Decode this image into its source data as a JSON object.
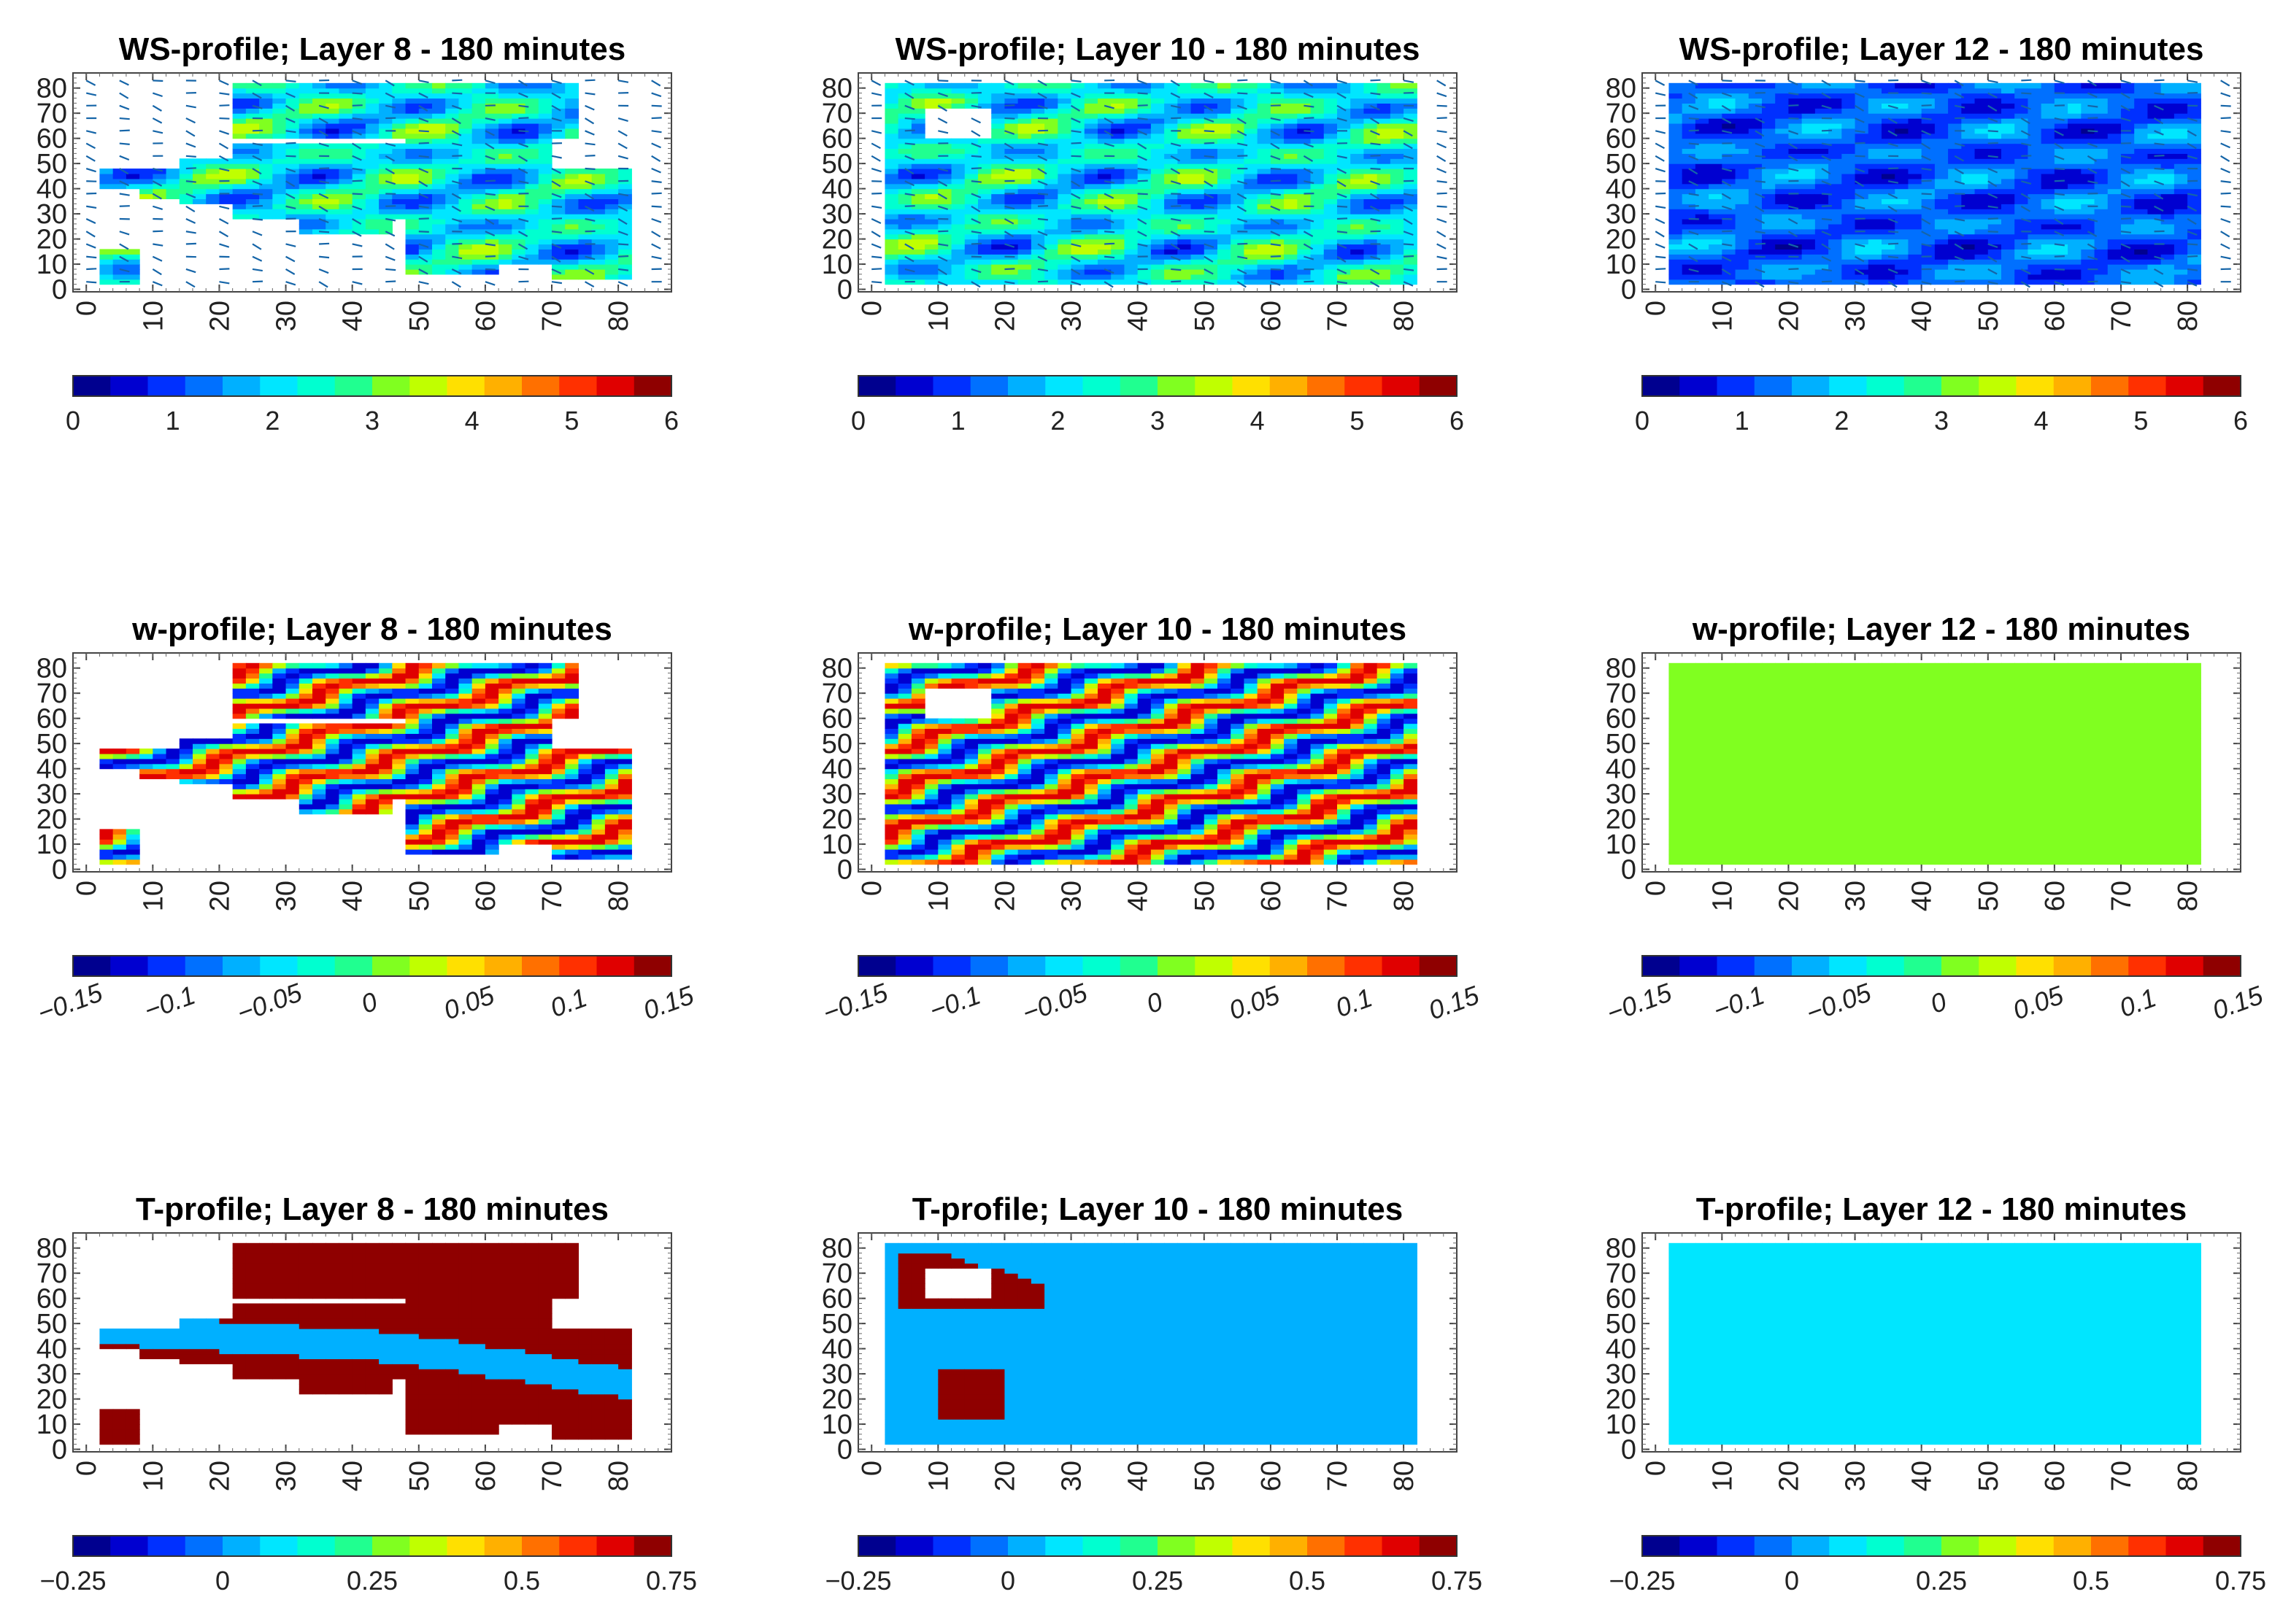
{
  "figure": {
    "description_rows": [
      "WS-profile",
      "w-profile",
      "T-profile"
    ],
    "layers": [
      "Layer 8",
      "Layer 10",
      "Layer 12"
    ]
  },
  "colormap": [
    "#00008f",
    "#0000d0",
    "#0030ff",
    "#0070ff",
    "#00b0ff",
    "#00e6ff",
    "#00ffd0",
    "#20ff90",
    "#80ff20",
    "#c0ff00",
    "#ffe000",
    "#ffb000",
    "#ff7000",
    "#ff3000",
    "#e00000",
    "#8f0000"
  ],
  "chart_data": [
    {
      "type": "heatmap",
      "id": "ws8",
      "title": "WS-profile; Layer 8 - 180 minutes",
      "x_ticks": [
        "0",
        "10",
        "20",
        "30",
        "40",
        "50",
        "60",
        "70",
        "80"
      ],
      "y_ticks": [
        "0",
        "10",
        "20",
        "30",
        "40",
        "50",
        "60",
        "70",
        "80"
      ],
      "xlim": [
        -2,
        88
      ],
      "ylim": [
        -1,
        86
      ],
      "colorbar": {
        "range": [
          0,
          6
        ],
        "ticks": [
          "0",
          "1",
          "2",
          "3",
          "4",
          "5",
          "6"
        ],
        "rotated": false
      },
      "vectors": true,
      "domain_mask": "partial",
      "field": "ws",
      "mask": [
        [
          22,
          75,
          60,
          83
        ],
        [
          2,
          8,
          41,
          49
        ],
        [
          8,
          16,
          36,
          49
        ],
        [
          14,
          22,
          35,
          52
        ],
        [
          22,
          48,
          28,
          58
        ],
        [
          32,
          46,
          22,
          36
        ],
        [
          48,
          62,
          6,
          78
        ],
        [
          62,
          70,
          10,
          60
        ],
        [
          70,
          82,
          5,
          48
        ],
        [
          2,
          8,
          2,
          17
        ]
      ]
    },
    {
      "type": "heatmap",
      "id": "ws10",
      "title": "WS-profile; Layer 10 - 180 minutes",
      "x_ticks": [
        "0",
        "10",
        "20",
        "30",
        "40",
        "50",
        "60",
        "70",
        "80"
      ],
      "y_ticks": [
        "0",
        "10",
        "20",
        "30",
        "40",
        "50",
        "60",
        "70",
        "80"
      ],
      "xlim": [
        -2,
        88
      ],
      "ylim": [
        -1,
        86
      ],
      "colorbar": {
        "range": [
          0,
          6
        ],
        "ticks": [
          "0",
          "1",
          "2",
          "3",
          "4",
          "5",
          "6"
        ],
        "rotated": false
      },
      "vectors": true,
      "domain_mask": "full-with-hole",
      "field": "ws",
      "mask": [
        [
          2,
          82,
          3,
          83
        ]
      ],
      "hole": [
        7,
        17,
        59,
        71
      ]
    },
    {
      "type": "heatmap",
      "id": "ws12",
      "title": "WS-profile; Layer 12 - 180 minutes",
      "x_ticks": [
        "0",
        "10",
        "20",
        "30",
        "40",
        "50",
        "60",
        "70",
        "80"
      ],
      "y_ticks": [
        "0",
        "10",
        "20",
        "30",
        "40",
        "50",
        "60",
        "70",
        "80"
      ],
      "xlim": [
        -2,
        88
      ],
      "ylim": [
        -1,
        86
      ],
      "colorbar": {
        "range": [
          0,
          6
        ],
        "ticks": [
          "0",
          "1",
          "2",
          "3",
          "4",
          "5",
          "6"
        ],
        "rotated": false
      },
      "vectors": true,
      "domain_mask": "full",
      "field": "ws_low",
      "mask": [
        [
          2,
          82,
          3,
          83
        ]
      ]
    },
    {
      "type": "heatmap",
      "id": "w8",
      "title": "w-profile; Layer 8 - 180 minutes",
      "x_ticks": [
        "0",
        "10",
        "20",
        "30",
        "40",
        "50",
        "60",
        "70",
        "80"
      ],
      "y_ticks": [
        "0",
        "10",
        "20",
        "30",
        "40",
        "50",
        "60",
        "70",
        "80"
      ],
      "xlim": [
        -2,
        88
      ],
      "ylim": [
        -1,
        86
      ],
      "colorbar": {
        "range": [
          -0.15,
          0.15
        ],
        "ticks": [
          "−0.15",
          "−0.1",
          "−0.05",
          "0",
          "0.05",
          "0.1",
          "0.15"
        ],
        "rotated": true
      },
      "vectors": false,
      "domain_mask": "partial",
      "field": "w",
      "mask": [
        [
          22,
          75,
          60,
          83
        ],
        [
          2,
          8,
          41,
          49
        ],
        [
          8,
          16,
          36,
          49
        ],
        [
          14,
          22,
          35,
          52
        ],
        [
          22,
          48,
          28,
          58
        ],
        [
          32,
          46,
          22,
          36
        ],
        [
          48,
          62,
          6,
          78
        ],
        [
          62,
          70,
          10,
          60
        ],
        [
          70,
          82,
          5,
          48
        ],
        [
          2,
          8,
          2,
          17
        ]
      ]
    },
    {
      "type": "heatmap",
      "id": "w10",
      "title": "w-profile; Layer 10 - 180 minutes",
      "x_ticks": [
        "0",
        "10",
        "20",
        "30",
        "40",
        "50",
        "60",
        "70",
        "80"
      ],
      "y_ticks": [
        "0",
        "10",
        "20",
        "30",
        "40",
        "50",
        "60",
        "70",
        "80"
      ],
      "xlim": [
        -2,
        88
      ],
      "ylim": [
        -1,
        86
      ],
      "colorbar": {
        "range": [
          -0.15,
          0.15
        ],
        "ticks": [
          "−0.15",
          "−0.1",
          "−0.05",
          "0",
          "0.05",
          "0.1",
          "0.15"
        ],
        "rotated": true
      },
      "vectors": false,
      "domain_mask": "full-with-hole",
      "field": "w",
      "mask": [
        [
          2,
          82,
          3,
          83
        ]
      ],
      "hole": [
        7,
        17,
        59,
        71
      ]
    },
    {
      "type": "heatmap",
      "id": "w12",
      "title": "w-profile; Layer 12 - 180 minutes",
      "x_ticks": [
        "0",
        "10",
        "20",
        "30",
        "40",
        "50",
        "60",
        "70",
        "80"
      ],
      "y_ticks": [
        "0",
        "10",
        "20",
        "30",
        "40",
        "50",
        "60",
        "70",
        "80"
      ],
      "xlim": [
        -2,
        88
      ],
      "ylim": [
        -1,
        86
      ],
      "colorbar": {
        "range": [
          -0.15,
          0.15
        ],
        "ticks": [
          "−0.15",
          "−0.1",
          "−0.05",
          "0",
          "0.05",
          "0.1",
          "0.15"
        ],
        "rotated": true
      },
      "vectors": false,
      "domain_mask": "full",
      "field": "uniform",
      "uniform_value": 0.015,
      "mask": [
        [
          2,
          82,
          3,
          83
        ]
      ]
    },
    {
      "type": "heatmap",
      "id": "t8",
      "title": "T-profile; Layer 8 - 180 minutes",
      "x_ticks": [
        "0",
        "10",
        "20",
        "30",
        "40",
        "50",
        "60",
        "70",
        "80"
      ],
      "y_ticks": [
        "0",
        "10",
        "20",
        "30",
        "40",
        "50",
        "60",
        "70",
        "80"
      ],
      "xlim": [
        -2,
        88
      ],
      "ylim": [
        -1,
        86
      ],
      "colorbar": {
        "range": [
          -0.25,
          0.75
        ],
        "ticks": [
          "−0.25",
          "0",
          "0.25",
          "0.5",
          "0.75"
        ],
        "rotated": false
      },
      "vectors": false,
      "domain_mask": "partial",
      "field": "t8",
      "mask": [
        [
          22,
          75,
          60,
          83
        ],
        [
          2,
          8,
          41,
          49
        ],
        [
          8,
          16,
          36,
          49
        ],
        [
          14,
          22,
          35,
          52
        ],
        [
          22,
          48,
          28,
          58
        ],
        [
          32,
          46,
          22,
          36
        ],
        [
          48,
          62,
          6,
          78
        ],
        [
          62,
          70,
          10,
          60
        ],
        [
          70,
          82,
          5,
          48
        ],
        [
          2,
          8,
          2,
          17
        ]
      ]
    },
    {
      "type": "heatmap",
      "id": "t10",
      "title": "T-profile; Layer 10 - 180 minutes",
      "x_ticks": [
        "0",
        "10",
        "20",
        "30",
        "40",
        "50",
        "60",
        "70",
        "80"
      ],
      "y_ticks": [
        "0",
        "10",
        "20",
        "30",
        "40",
        "50",
        "60",
        "70",
        "80"
      ],
      "xlim": [
        -2,
        88
      ],
      "ylim": [
        -1,
        86
      ],
      "colorbar": {
        "range": [
          -0.25,
          0.75
        ],
        "ticks": [
          "−0.25",
          "0",
          "0.25",
          "0.5",
          "0.75"
        ],
        "rotated": false
      },
      "vectors": false,
      "domain_mask": "full-with-hole",
      "field": "t10",
      "mask": [
        [
          2,
          82,
          3,
          83
        ]
      ],
      "hole": [
        7,
        17,
        59,
        71
      ]
    },
    {
      "type": "heatmap",
      "id": "t12",
      "title": "T-profile; Layer 12 - 180 minutes",
      "x_ticks": [
        "0",
        "10",
        "20",
        "30",
        "40",
        "50",
        "60",
        "70",
        "80"
      ],
      "y_ticks": [
        "0",
        "10",
        "20",
        "30",
        "40",
        "50",
        "60",
        "70",
        "80"
      ],
      "xlim": [
        -2,
        88
      ],
      "ylim": [
        -1,
        86
      ],
      "colorbar": {
        "range": [
          -0.25,
          0.75
        ],
        "ticks": [
          "−0.25",
          "0",
          "0.25",
          "0.5",
          "0.75"
        ],
        "rotated": false
      },
      "vectors": false,
      "domain_mask": "full",
      "field": "uniform",
      "uniform_value": 0.1,
      "mask": [
        [
          2,
          82,
          3,
          83
        ]
      ]
    }
  ]
}
